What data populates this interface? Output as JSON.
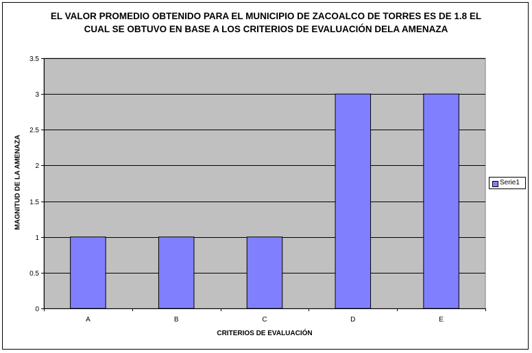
{
  "chart_data": {
    "type": "bar",
    "title_lines": [
      "EL VALOR PROMEDIO OBTENIDO PARA EL MUNICIPIO DE ZACOALCO DE TORRES ES DE 1.8 EL",
      "CUAL SE OBTUVO EN BASE A LOS CRITERIOS DE EVALUACIÓN DELA AMENAZA"
    ],
    "xlabel": "CRITERIOS DE EVALUACIÓN",
    "ylabel": "MAGNITUD DE LA AMENAZA",
    "categories": [
      "A",
      "B",
      "C",
      "D",
      "E"
    ],
    "series": [
      {
        "name": "Serie1",
        "values": [
          1,
          1,
          1,
          3,
          3
        ],
        "color": "#8080ff"
      }
    ],
    "ylim": [
      0,
      3.5
    ],
    "yticks": [
      "0",
      "0.5",
      "1",
      "1.5",
      "2",
      "2.5",
      "3",
      "3.5"
    ],
    "grid": true,
    "plot_background": "#c0c0c0",
    "legend_position": "right"
  }
}
